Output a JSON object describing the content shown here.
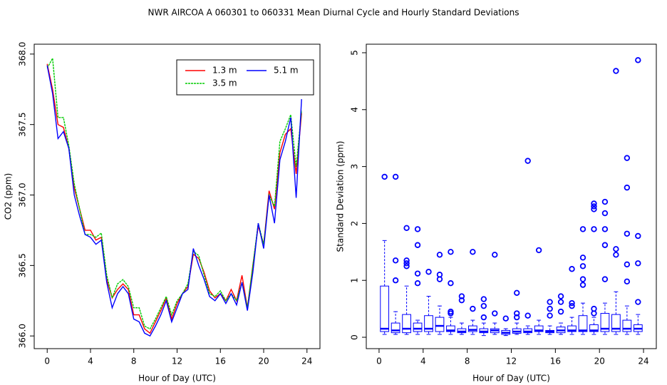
{
  "title": "NWR   AIRCOA A   060301 to 060331   Mean Diurnal Cycle and Hourly Standard Deviations",
  "chart_data": [
    {
      "type": "line",
      "xlabel": "Hour of Day (UTC)",
      "ylabel": "CO2 (ppm)",
      "x": [
        0,
        0.5,
        1,
        1.5,
        2,
        2.5,
        3,
        3.5,
        4,
        4.5,
        5,
        5.5,
        6,
        6.5,
        7,
        7.5,
        8,
        8.5,
        9,
        9.5,
        10,
        10.5,
        11,
        11.5,
        12,
        12.5,
        13,
        13.5,
        14,
        14.5,
        15,
        15.5,
        16,
        16.5,
        17,
        17.5,
        18,
        18.5,
        19,
        19.5,
        20,
        20.5,
        21,
        21.5,
        22,
        22.5,
        23,
        23.5
      ],
      "series": [
        {
          "name": "1.3 m",
          "color": "#ff0000",
          "values": [
            367.93,
            367.75,
            367.5,
            367.48,
            367.33,
            367.05,
            366.9,
            366.75,
            366.75,
            366.68,
            366.7,
            366.4,
            366.27,
            366.33,
            366.37,
            366.33,
            366.15,
            366.15,
            366.05,
            366.02,
            366.1,
            366.18,
            366.27,
            366.12,
            366.23,
            366.3,
            366.35,
            366.58,
            366.55,
            366.45,
            366.32,
            366.27,
            366.3,
            366.25,
            366.33,
            366.25,
            366.43,
            366.2,
            366.5,
            366.78,
            366.65,
            367.03,
            366.9,
            367.3,
            367.43,
            367.47,
            367.15,
            367.58
          ]
        },
        {
          "name": "3.5 m",
          "color": "#00cc00",
          "values": [
            367.9,
            367.97,
            367.55,
            367.55,
            367.35,
            367.08,
            366.9,
            366.72,
            366.72,
            366.7,
            366.73,
            366.43,
            366.27,
            366.37,
            366.4,
            366.35,
            366.2,
            366.2,
            366.07,
            366.05,
            366.12,
            366.2,
            366.28,
            366.15,
            366.25,
            366.3,
            366.37,
            366.6,
            366.57,
            366.43,
            366.3,
            366.28,
            366.32,
            366.25,
            366.3,
            366.25,
            366.38,
            366.2,
            366.5,
            366.8,
            366.65,
            367.0,
            366.92,
            367.38,
            367.47,
            367.57,
            367.2,
            367.6
          ]
        },
        {
          "name": "5.1 m",
          "color": "#0000ff",
          "values": [
            367.92,
            367.72,
            367.4,
            367.45,
            367.33,
            367.0,
            366.85,
            366.72,
            366.7,
            366.65,
            366.68,
            366.38,
            366.2,
            366.3,
            366.35,
            366.3,
            366.12,
            366.1,
            366.02,
            366.0,
            366.07,
            366.15,
            366.25,
            366.1,
            366.2,
            366.3,
            366.33,
            366.62,
            366.5,
            366.4,
            366.28,
            366.25,
            366.3,
            366.23,
            366.3,
            366.22,
            366.38,
            366.18,
            366.45,
            366.8,
            366.62,
            367.0,
            366.8,
            367.25,
            367.38,
            367.55,
            366.98,
            367.68
          ]
        }
      ],
      "xlim": [
        -1.2,
        25.2
      ],
      "ylim": [
        365.91,
        368.07
      ],
      "xticks": [
        0,
        4,
        8,
        12,
        16,
        20,
        24
      ],
      "yticks": [
        {
          "value": 366,
          "label": "366.0"
        },
        {
          "value": 366.5,
          "label": "366.5"
        },
        {
          "value": 367,
          "label": "367.0"
        },
        {
          "value": 367.5,
          "label": "367.5"
        },
        {
          "value": 368,
          "label": "368.0"
        }
      ],
      "legend": "topright"
    },
    {
      "type": "box",
      "xlabel": "Hour of Day (UTC)",
      "ylabel": "Standard Deviation (ppm)",
      "color": "#0000ff",
      "boxes": [
        {
          "x": 0.5,
          "whislo": 0.05,
          "q1": 0.1,
          "med": 0.15,
          "q3": 0.9,
          "whishi": 1.7,
          "fliers": [
            2.82
          ]
        },
        {
          "x": 1.5,
          "whislo": 0.05,
          "q1": 0.08,
          "med": 0.12,
          "q3": 0.25,
          "whishi": 0.45,
          "fliers": [
            1.0,
            1.35,
            2.82
          ]
        },
        {
          "x": 2.5,
          "whislo": 0.05,
          "q1": 0.08,
          "med": 0.15,
          "q3": 0.4,
          "whishi": 0.9,
          "fliers": [
            1.25,
            1.3,
            1.35,
            1.92
          ]
        },
        {
          "x": 3.5,
          "whislo": 0.05,
          "q1": 0.1,
          "med": 0.15,
          "q3": 0.25,
          "whishi": 0.3,
          "fliers": [
            0.95,
            1.12,
            1.62,
            1.9
          ]
        },
        {
          "x": 4.5,
          "whislo": 0.05,
          "q1": 0.1,
          "med": 0.15,
          "q3": 0.38,
          "whishi": 0.72,
          "fliers": [
            1.15
          ]
        },
        {
          "x": 5.5,
          "whislo": 0.05,
          "q1": 0.1,
          "med": 0.2,
          "q3": 0.35,
          "whishi": 0.55,
          "fliers": [
            1.02,
            1.1,
            1.45
          ]
        },
        {
          "x": 6.5,
          "whislo": 0.05,
          "q1": 0.1,
          "med": 0.12,
          "q3": 0.2,
          "whishi": 0.35,
          "fliers": [
            0.42,
            0.45,
            0.95,
            1.5
          ]
        },
        {
          "x": 7.5,
          "whislo": 0.05,
          "q1": 0.08,
          "med": 0.1,
          "q3": 0.15,
          "whishi": 0.25,
          "fliers": [
            0.65,
            0.72
          ]
        },
        {
          "x": 8.5,
          "whislo": 0.05,
          "q1": 0.1,
          "med": 0.13,
          "q3": 0.2,
          "whishi": 0.3,
          "fliers": [
            0.5,
            1.5
          ]
        },
        {
          "x": 9.5,
          "whislo": 0.03,
          "q1": 0.08,
          "med": 0.1,
          "q3": 0.15,
          "whishi": 0.25,
          "fliers": [
            0.35,
            0.55,
            0.67
          ]
        },
        {
          "x": 10.5,
          "whislo": 0.05,
          "q1": 0.08,
          "med": 0.12,
          "q3": 0.15,
          "whishi": 0.25,
          "fliers": [
            0.42,
            1.45
          ]
        },
        {
          "x": 11.5,
          "whislo": 0.03,
          "q1": 0.05,
          "med": 0.08,
          "q3": 0.12,
          "whishi": 0.15,
          "fliers": [
            0.33
          ]
        },
        {
          "x": 12.5,
          "whislo": 0.05,
          "q1": 0.07,
          "med": 0.1,
          "q3": 0.15,
          "whishi": 0.25,
          "fliers": [
            0.35,
            0.42,
            0.78
          ]
        },
        {
          "x": 13.5,
          "whislo": 0.05,
          "q1": 0.08,
          "med": 0.1,
          "q3": 0.15,
          "whishi": 0.2,
          "fliers": [
            0.38,
            3.1
          ]
        },
        {
          "x": 14.5,
          "whislo": 0.05,
          "q1": 0.1,
          "med": 0.12,
          "q3": 0.2,
          "whishi": 0.3,
          "fliers": [
            1.53
          ]
        },
        {
          "x": 15.5,
          "whislo": 0.05,
          "q1": 0.08,
          "med": 0.1,
          "q3": 0.12,
          "whishi": 0.2,
          "fliers": [
            0.38,
            0.5,
            0.62
          ]
        },
        {
          "x": 16.5,
          "whislo": 0.05,
          "q1": 0.08,
          "med": 0.12,
          "q3": 0.18,
          "whishi": 0.25,
          "fliers": [
            0.45,
            0.62,
            0.72
          ]
        },
        {
          "x": 17.5,
          "whislo": 0.05,
          "q1": 0.1,
          "med": 0.12,
          "q3": 0.2,
          "whishi": 0.35,
          "fliers": [
            0.55,
            0.6,
            1.2
          ]
        },
        {
          "x": 18.5,
          "whislo": 0.05,
          "q1": 0.1,
          "med": 0.12,
          "q3": 0.38,
          "whishi": 0.6,
          "fliers": [
            0.92,
            1.02,
            1.25,
            1.4,
            1.9
          ]
        },
        {
          "x": 19.5,
          "whislo": 0.05,
          "q1": 0.1,
          "med": 0.12,
          "q3": 0.22,
          "whishi": 0.35,
          "fliers": [
            0.42,
            0.5,
            1.9,
            2.25,
            2.3,
            2.35
          ]
        },
        {
          "x": 20.5,
          "whislo": 0.05,
          "q1": 0.1,
          "med": 0.15,
          "q3": 0.42,
          "whishi": 0.6,
          "fliers": [
            1.02,
            1.62,
            1.9,
            2.18,
            2.38
          ]
        },
        {
          "x": 21.5,
          "whislo": 0.05,
          "q1": 0.1,
          "med": 0.15,
          "q3": 0.4,
          "whishi": 0.8,
          "fliers": [
            1.45,
            1.55,
            4.68
          ]
        },
        {
          "x": 22.5,
          "whislo": 0.05,
          "q1": 0.1,
          "med": 0.15,
          "q3": 0.3,
          "whishi": 0.55,
          "fliers": [
            0.98,
            1.28,
            1.82,
            2.63,
            3.15
          ]
        },
        {
          "x": 23.5,
          "whislo": 0.05,
          "q1": 0.1,
          "med": 0.15,
          "q3": 0.22,
          "whishi": 0.4,
          "fliers": [
            0.62,
            1.3,
            1.78,
            4.87
          ]
        }
      ],
      "xlim": [
        -1.16,
        25.16
      ],
      "ylim": [
        -0.2,
        5.15
      ],
      "xticks": [
        0,
        4,
        8,
        12,
        16,
        20,
        24
      ],
      "yticks": [
        0,
        1,
        2,
        3,
        4,
        5
      ]
    }
  ]
}
